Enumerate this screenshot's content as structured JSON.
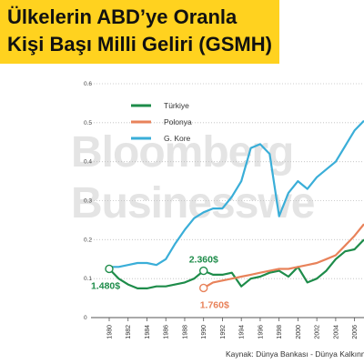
{
  "header": {
    "title_line1": "Ülkelerin ABD’ye Oranla",
    "title_line2": "Kişi Başı Milli Geliri (GSMH)",
    "band_color": "#ffd21f"
  },
  "watermark": {
    "line1": "Bloomberg",
    "line2": "Businesswe"
  },
  "source": "Kaynak: Dünya Bankası - Dünya Kalkınma R",
  "chart_data": {
    "type": "line",
    "x": [
      1980,
      1981,
      1982,
      1983,
      1984,
      1985,
      1986,
      1987,
      1988,
      1989,
      1990,
      1991,
      1992,
      1993,
      1994,
      1995,
      1996,
      1997,
      1998,
      1999,
      2000,
      2001,
      2002,
      2003,
      2004,
      2005,
      2006,
      2007
    ],
    "x_ticks": [
      1980,
      1982,
      1984,
      1986,
      1988,
      1990,
      1992,
      1994,
      1996,
      1998,
      2000,
      2002,
      2004,
      2006
    ],
    "y_ticks": [
      0,
      0.1,
      0.2,
      0.3,
      0.4,
      0.5,
      0.6
    ],
    "y_tick_labels": [
      "0",
      "0.1",
      "0.2",
      "0.3",
      "0.4",
      "0.5",
      "0.6"
    ],
    "xlim": [
      1980,
      2007
    ],
    "ylim": [
      0,
      0.6
    ],
    "grid": "horizontal-dotted",
    "legend_position": "top-left",
    "series": [
      {
        "name": "Türkiye",
        "color": "#1e8c4a",
        "values": [
          0.125,
          0.1,
          0.085,
          0.075,
          0.075,
          0.08,
          0.08,
          0.085,
          0.09,
          0.1,
          0.12,
          0.11,
          0.11,
          0.115,
          0.08,
          0.1,
          0.105,
          0.115,
          0.12,
          0.105,
          0.13,
          0.09,
          0.1,
          0.12,
          0.15,
          0.17,
          0.175,
          0.2
        ]
      },
      {
        "name": "Polonya",
        "color": "#e8825a",
        "values": [
          null,
          null,
          null,
          null,
          null,
          null,
          null,
          null,
          null,
          null,
          0.076,
          0.09,
          0.095,
          0.1,
          0.105,
          0.11,
          0.115,
          0.12,
          0.125,
          0.125,
          0.13,
          0.135,
          0.14,
          0.15,
          0.16,
          0.185,
          0.21,
          0.24
        ]
      },
      {
        "name": "G. Kore",
        "color": "#3aaed8",
        "values": [
          0.13,
          0.13,
          0.135,
          0.14,
          0.14,
          0.135,
          0.15,
          0.19,
          0.225,
          0.255,
          0.27,
          0.28,
          0.28,
          0.31,
          0.35,
          0.435,
          0.445,
          0.42,
          0.26,
          0.32,
          0.35,
          0.33,
          0.36,
          0.38,
          0.4,
          0.44,
          0.48,
          0.505
        ]
      }
    ],
    "annotations": [
      {
        "text": "1.480$",
        "series": "Türkiye",
        "x": 1980,
        "color": "#1e8c4a"
      },
      {
        "text": "2.360$",
        "series": "Türkiye",
        "x": 1990,
        "color": "#1e8c4a"
      },
      {
        "text": "1.760$",
        "series": "Polonya",
        "x": 1990,
        "color": "#e8825a"
      }
    ]
  }
}
